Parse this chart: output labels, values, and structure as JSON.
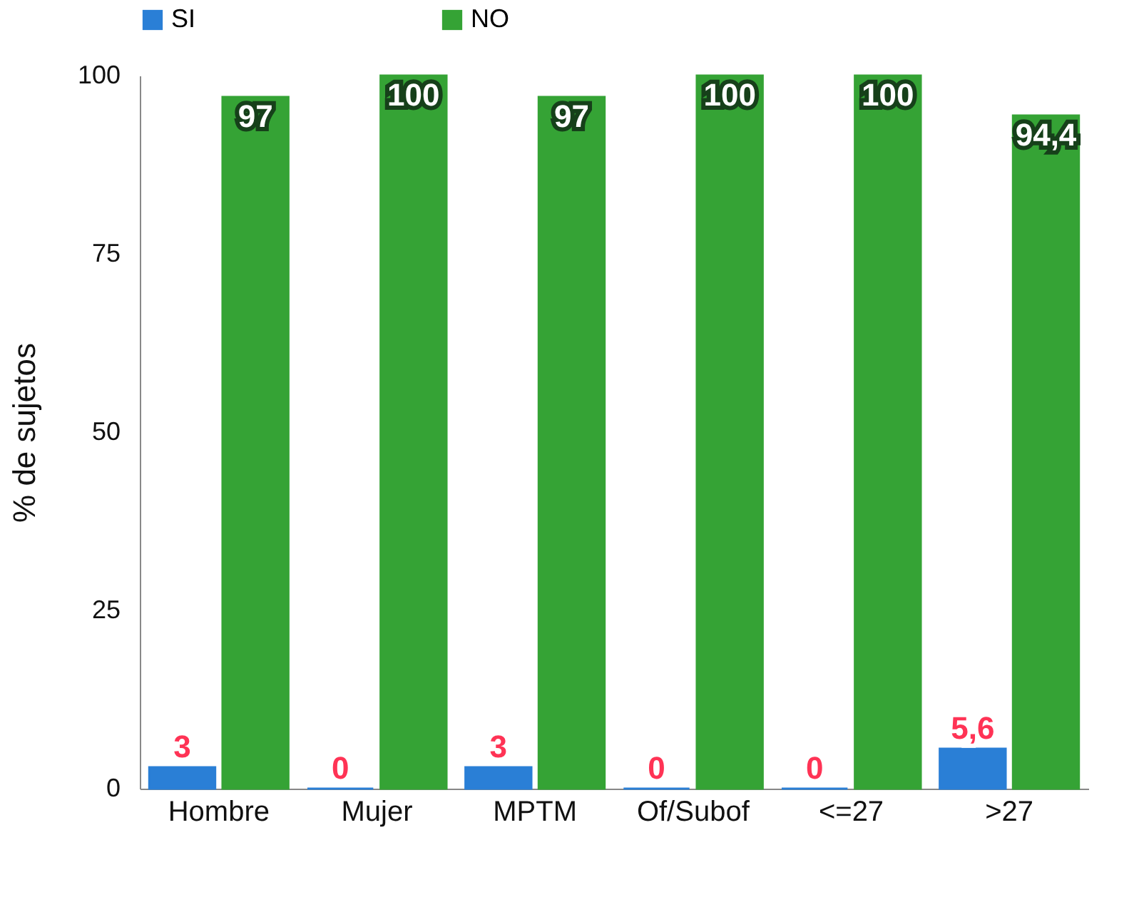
{
  "chart_data": {
    "type": "bar",
    "ylabel": "% de sujetos",
    "categories": [
      "Hombre",
      "Mujer",
      "MPTM",
      "Of/Subof",
      "<=27",
      ">27"
    ],
    "series": [
      {
        "name": "SI",
        "color": "#2a7fd6",
        "values": [
          3,
          0,
          3,
          0,
          0,
          5.6
        ],
        "value_labels": [
          "3",
          "0",
          "3",
          "0",
          "0",
          "5,6"
        ]
      },
      {
        "name": "NO",
        "color": "#35a335",
        "values": [
          97,
          100,
          97,
          100,
          100,
          94.4
        ],
        "value_labels": [
          "97",
          "100",
          "97",
          "100",
          "100",
          "94,4"
        ]
      }
    ],
    "ylim": [
      0,
      100
    ],
    "yticks": [
      0,
      25,
      50,
      75,
      100
    ],
    "grid": false,
    "legend": "top"
  }
}
